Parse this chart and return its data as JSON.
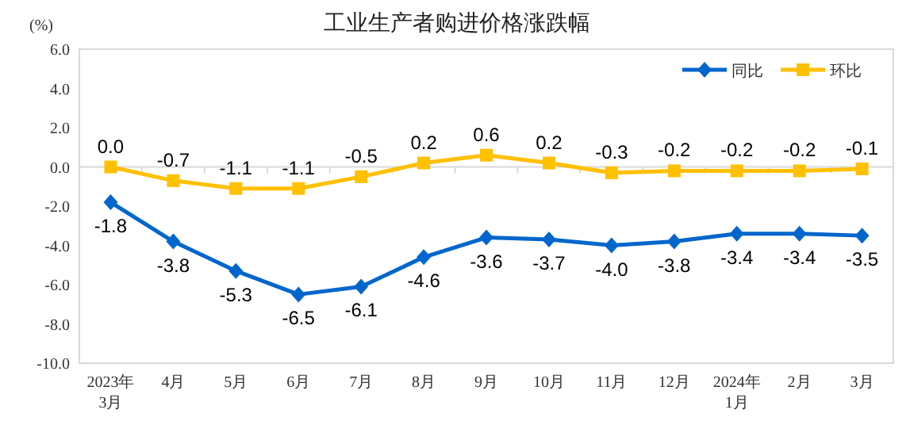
{
  "chart_data": {
    "type": "line",
    "title": "工业生产者购进价格涨跌幅",
    "ylabel": "(%)",
    "categories": [
      "2023年\n3月",
      "4月",
      "5月",
      "6月",
      "7月",
      "8月",
      "9月",
      "10月",
      "11月",
      "12月",
      "2024年\n1月",
      "2月",
      "3月"
    ],
    "series": [
      {
        "name": "同比",
        "color": "#0066cc",
        "marker": "diamond",
        "values": [
          -1.8,
          -3.8,
          -5.3,
          -6.5,
          -6.1,
          -4.6,
          -3.6,
          -3.7,
          -4.0,
          -3.8,
          -3.4,
          -3.4,
          -3.5
        ],
        "value_labels": [
          "-1.8",
          "-3.8",
          "-5.3",
          "-6.5",
          "-6.1",
          "-4.6",
          "-3.6",
          "-3.7",
          "-4.0",
          "-3.8",
          "-3.4",
          "-3.4",
          "-3.5"
        ]
      },
      {
        "name": "环比",
        "color": "#ffc000",
        "marker": "square",
        "values": [
          0.0,
          -0.7,
          -1.1,
          -1.1,
          -0.5,
          0.2,
          0.6,
          0.2,
          -0.3,
          -0.2,
          -0.2,
          -0.2,
          -0.1
        ],
        "value_labels": [
          "0.0",
          "-0.7",
          "-1.1",
          "-1.1",
          "-0.5",
          "0.2",
          "0.6",
          "0.2",
          "-0.3",
          "-0.2",
          "-0.2",
          "-0.2",
          "-0.1"
        ]
      }
    ],
    "ylim": [
      -10,
      6
    ],
    "yticks": [
      {
        "value": 6,
        "label": "6.0"
      },
      {
        "value": 4,
        "label": "4.0"
      },
      {
        "value": 2,
        "label": "2.0"
      },
      {
        "value": 0,
        "label": "0.0"
      },
      {
        "value": -2,
        "label": "-2.0"
      },
      {
        "value": -4,
        "label": "-4.0"
      },
      {
        "value": -6,
        "label": "-6.0"
      },
      {
        "value": -8,
        "label": "-8.0"
      },
      {
        "value": -10,
        "label": "-10.0"
      }
    ],
    "legend": "top right",
    "line_style": "solid"
  }
}
